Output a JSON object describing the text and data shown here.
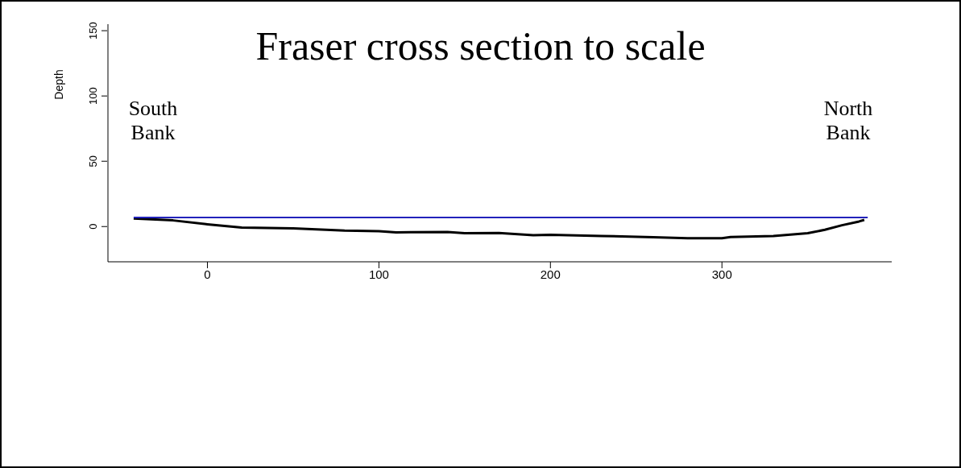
{
  "chart_data": {
    "type": "line",
    "title": "Fraser cross section to scale",
    "ylabel": "Depth",
    "annotations": [
      "South Bank",
      "North Bank"
    ],
    "xlim": [
      -58,
      399
    ],
    "xticks": [
      0,
      100,
      200,
      300
    ],
    "ylim": [
      -27,
      155
    ],
    "yticks": [
      0,
      50,
      100,
      150
    ],
    "marker": "none",
    "line_style": "solid",
    "legend": false,
    "grid": false,
    "series": [
      {
        "type": "line",
        "color": "#000000",
        "x": [
          -43,
          -20,
          0,
          20,
          50,
          80,
          100,
          110,
          140,
          150,
          170,
          190,
          200,
          230,
          260,
          280,
          300,
          305,
          330,
          350,
          360,
          370,
          380,
          383
        ],
        "values": [
          6.2,
          4.7,
          1.7,
          -0.8,
          -1.4,
          -3.1,
          -3.5,
          -4.5,
          -4.1,
          -5.1,
          -4.9,
          -6.6,
          -6.4,
          -7.2,
          -8.2,
          -9.0,
          -9.0,
          -8.0,
          -7.2,
          -5.1,
          -2.5,
          1.0,
          3.9,
          5.1
        ]
      },
      {
        "type": "line",
        "color": "#2222bb",
        "x": [
          -43,
          385
        ],
        "values": [
          7,
          7
        ]
      }
    ]
  }
}
